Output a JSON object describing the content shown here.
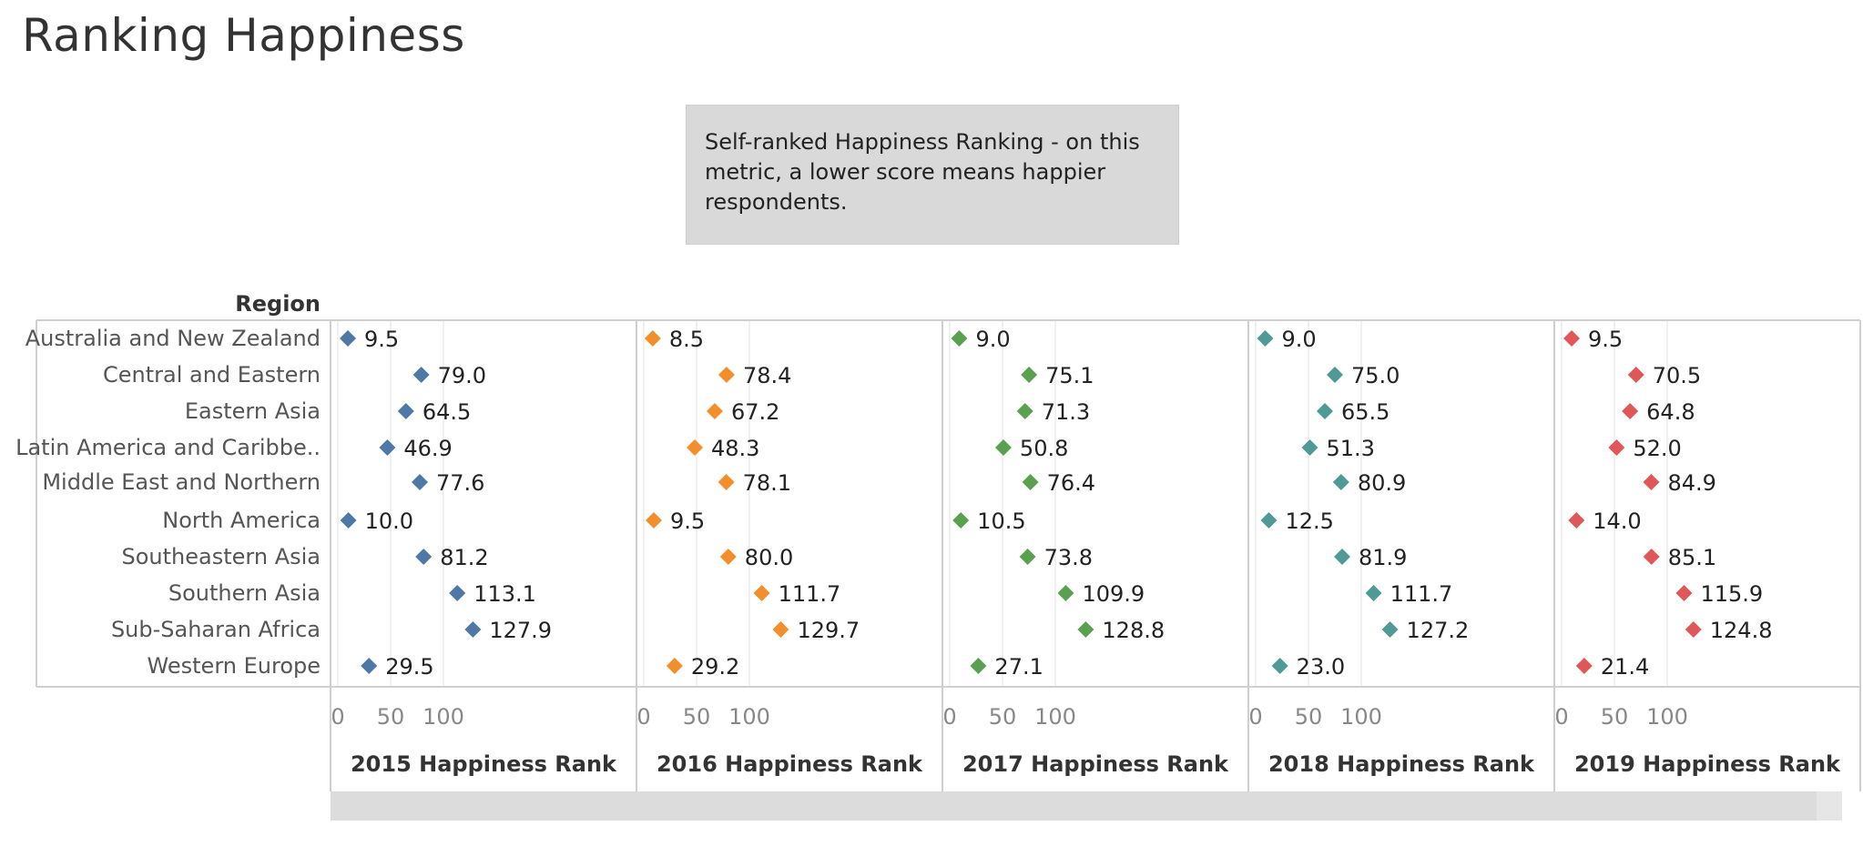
{
  "page": {
    "title": "Ranking Happiness",
    "note": "Self-ranked Happiness Ranking - on this\nmetric, a lower score means happier\nrespondents."
  },
  "chart_data": {
    "type": "scatter",
    "row_header": "Region",
    "regions": [
      "Australia and New Zealand",
      "Central and Eastern",
      "Eastern Asia",
      "Latin America and Caribbe..",
      "Middle East and Northern",
      "North America",
      "Southeastern Asia",
      "Southern Asia",
      "Sub-Saharan Africa",
      "Western Europe"
    ],
    "xlim": [
      0,
      140
    ],
    "xticks": [
      0,
      50,
      100
    ],
    "grid": true,
    "panels": [
      {
        "name": "2015 Happiness Rank",
        "color": "#4e79a7",
        "values": [
          9.5,
          79.0,
          64.5,
          46.9,
          77.6,
          10.0,
          81.2,
          113.1,
          127.9,
          29.5
        ]
      },
      {
        "name": "2016 Happiness Rank",
        "color": "#f28e2b",
        "values": [
          8.5,
          78.4,
          67.2,
          48.3,
          78.1,
          9.5,
          80.0,
          111.7,
          129.7,
          29.2
        ]
      },
      {
        "name": "2017 Happiness Rank",
        "color": "#59a14f",
        "values": [
          9.0,
          75.1,
          71.3,
          50.8,
          76.4,
          10.5,
          73.8,
          109.9,
          128.8,
          27.1
        ]
      },
      {
        "name": "2018 Happiness Rank",
        "color": "#4f9a96",
        "values": [
          9.0,
          75.0,
          65.5,
          51.3,
          80.9,
          12.5,
          81.9,
          111.7,
          127.2,
          23.0
        ]
      },
      {
        "name": "2019 Happiness Rank",
        "color": "#e15759",
        "values": [
          9.5,
          70.5,
          64.8,
          52.0,
          84.9,
          14.0,
          85.1,
          115.9,
          124.8,
          21.4
        ]
      }
    ]
  }
}
